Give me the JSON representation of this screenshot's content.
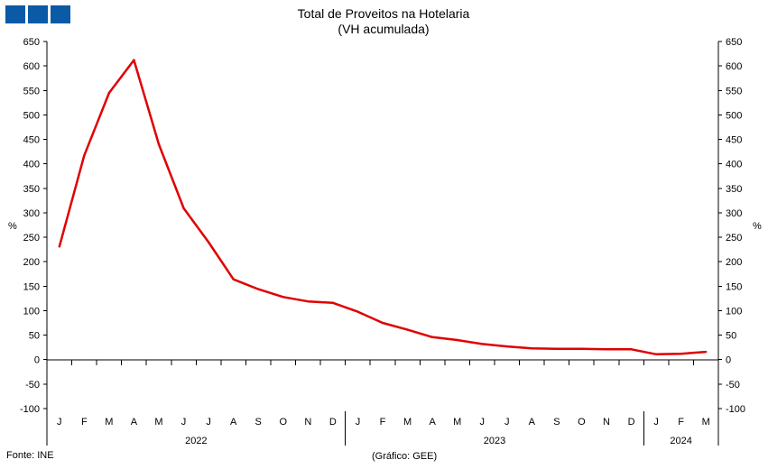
{
  "chart_data": {
    "type": "line",
    "title": "Total de Proveitos na Hotelaria",
    "subtitle": "(VH acumulada)",
    "ylabel_left": "%",
    "ylabel_right": "%",
    "ylim": [
      -100,
      650
    ],
    "yticks": [
      -100,
      -50,
      0,
      50,
      100,
      150,
      200,
      250,
      300,
      350,
      400,
      450,
      500,
      550,
      600,
      650
    ],
    "months": [
      "J",
      "F",
      "M",
      "A",
      "M",
      "J",
      "J",
      "A",
      "S",
      "O",
      "N",
      "D",
      "J",
      "F",
      "M",
      "A",
      "M",
      "J",
      "J",
      "A",
      "S",
      "O",
      "N",
      "D",
      "J",
      "F",
      "M"
    ],
    "years": [
      {
        "label": "2022",
        "start": 0,
        "end": 11
      },
      {
        "label": "2023",
        "start": 12,
        "end": 23
      },
      {
        "label": "2024",
        "start": 24,
        "end": 26
      }
    ],
    "series": [
      {
        "name": "Total de Proveitos na Hotelaria",
        "color": "#e00000",
        "values": [
          231,
          417,
          545,
          612,
          440,
          309,
          240,
          164,
          144,
          128,
          119,
          116,
          98,
          75,
          61,
          46,
          40,
          32,
          27,
          23,
          22,
          22,
          21,
          21,
          11,
          12,
          16
        ]
      }
    ]
  },
  "source": "Fonte: INE",
  "credit": "(Gráfico: GEE)"
}
